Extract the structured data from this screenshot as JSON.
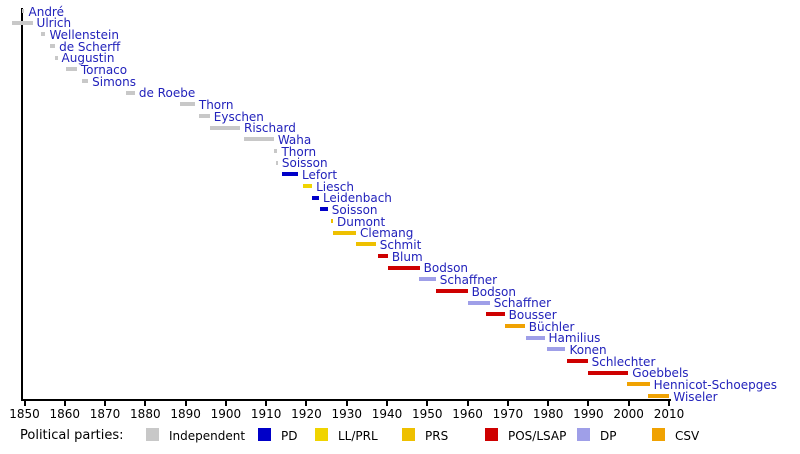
{
  "chart_data": {
    "type": "bar",
    "subtype": "gantt-timeline",
    "description": "Timeline of officeholders by political party",
    "axis": {
      "orientation": "horizontal",
      "min_year": 1845,
      "max_year": 2012,
      "ticks": [
        1850,
        1860,
        1870,
        1880,
        1890,
        1900,
        1910,
        1920,
        1930,
        1940,
        1950,
        1960,
        1970,
        1980,
        1990,
        2000,
        2010
      ]
    },
    "parties": {
      "Independent": "#c8c8c8",
      "PD": "#0000c8",
      "LL/PRL": "#f0d400",
      "PRS": "#eec000",
      "POS/LSAP": "#ce0000",
      "DP": "#9f9fe8",
      "CSV": "#f0a202"
    },
    "officeholders": [
      {
        "name": "André",
        "party": "Independent",
        "start": 1849.5,
        "end": 1850.0
      },
      {
        "name": "Ulrich",
        "party": "Independent",
        "start": 1847.0,
        "end": 1852.0
      },
      {
        "name": "Wellenstein",
        "party": "Independent",
        "start": 1854.0,
        "end": 1855.2
      },
      {
        "name": "de Scherff",
        "party": "Independent",
        "start": 1856.4,
        "end": 1857.6
      },
      {
        "name": "Augustin",
        "party": "Independent",
        "start": 1857.6,
        "end": 1858.2
      },
      {
        "name": "Tornaco",
        "party": "Independent",
        "start": 1860.3,
        "end": 1863.0
      },
      {
        "name": "Simons",
        "party": "Independent",
        "start": 1864.3,
        "end": 1865.8
      },
      {
        "name": "de Roebe",
        "party": "Independent",
        "start": 1875.2,
        "end": 1877.4
      },
      {
        "name": "Thorn",
        "party": "Independent",
        "start": 1888.6,
        "end": 1892.3
      },
      {
        "name": "Eyschen",
        "party": "Independent",
        "start": 1893.3,
        "end": 1896.0
      },
      {
        "name": "Rischard",
        "party": "Independent",
        "start": 1896.0,
        "end": 1903.5
      },
      {
        "name": "Waha",
        "party": "Independent",
        "start": 1904.5,
        "end": 1911.9
      },
      {
        "name": "Thorn",
        "party": "Independent",
        "start": 1911.9,
        "end": 1912.8
      },
      {
        "name": "Soisson",
        "party": "Independent",
        "start": 1912.4,
        "end": 1912.9
      },
      {
        "name": "Lefort",
        "party": "PD",
        "start": 1913.9,
        "end": 1917.9
      },
      {
        "name": "Liesch",
        "party": "LL/PRL",
        "start": 1919.1,
        "end": 1921.4
      },
      {
        "name": "Leidenbach",
        "party": "PD",
        "start": 1921.4,
        "end": 1923.1
      },
      {
        "name": "Soisson",
        "party": "PD",
        "start": 1923.3,
        "end": 1925.3
      },
      {
        "name": "Dumont",
        "party": "PRS",
        "start": 1926.1,
        "end": 1926.6
      },
      {
        "name": "Clemang",
        "party": "PRS",
        "start": 1926.6,
        "end": 1932.3
      },
      {
        "name": "Schmit",
        "party": "PRS",
        "start": 1932.3,
        "end": 1937.2
      },
      {
        "name": "Blum",
        "party": "POS/LSAP",
        "start": 1937.7,
        "end": 1940.2
      },
      {
        "name": "Bodson",
        "party": "POS/LSAP",
        "start": 1940.2,
        "end": 1948.1
      },
      {
        "name": "Schaffner",
        "party": "DP",
        "start": 1947.9,
        "end": 1952.1
      },
      {
        "name": "Bodson",
        "party": "POS/LSAP",
        "start": 1952.1,
        "end": 1960.0
      },
      {
        "name": "Schaffner",
        "party": "DP",
        "start": 1960.0,
        "end": 1965.5
      },
      {
        "name": "Bousser",
        "party": "POS/LSAP",
        "start": 1964.5,
        "end": 1969.2
      },
      {
        "name": "Büchler",
        "party": "CSV",
        "start": 1969.2,
        "end": 1974.2
      },
      {
        "name": "Hamilius",
        "party": "DP",
        "start": 1974.4,
        "end": 1979.1
      },
      {
        "name": "Konen",
        "party": "DP",
        "start": 1979.6,
        "end": 1984.3
      },
      {
        "name": "Schlechter",
        "party": "POS/LSAP",
        "start": 1984.6,
        "end": 1989.8
      },
      {
        "name": "Goebbels",
        "party": "POS/LSAP",
        "start": 1990.0,
        "end": 1999.9
      },
      {
        "name": "Hennicot-Schoepges",
        "party": "CSV",
        "start": 1999.7,
        "end": 2005.2
      },
      {
        "name": "Wiseler",
        "party": "CSV",
        "start": 2004.7,
        "end": 2010.1
      }
    ],
    "legend": {
      "title": "Political parties:",
      "entries": [
        {
          "label": "Independent",
          "party": "Independent"
        },
        {
          "label": "PD",
          "party": "PD"
        },
        {
          "label": "LL/PRL",
          "party": "LL/PRL"
        },
        {
          "label": "PRS",
          "party": "PRS"
        },
        {
          "label": "POS/LSAP",
          "party": "POS/LSAP"
        },
        {
          "label": "DP",
          "party": "DP"
        },
        {
          "label": "CSV",
          "party": "CSV"
        }
      ]
    },
    "text_color": "#2222bb",
    "axis_color": "#000000",
    "background_color": "#ffffff"
  }
}
